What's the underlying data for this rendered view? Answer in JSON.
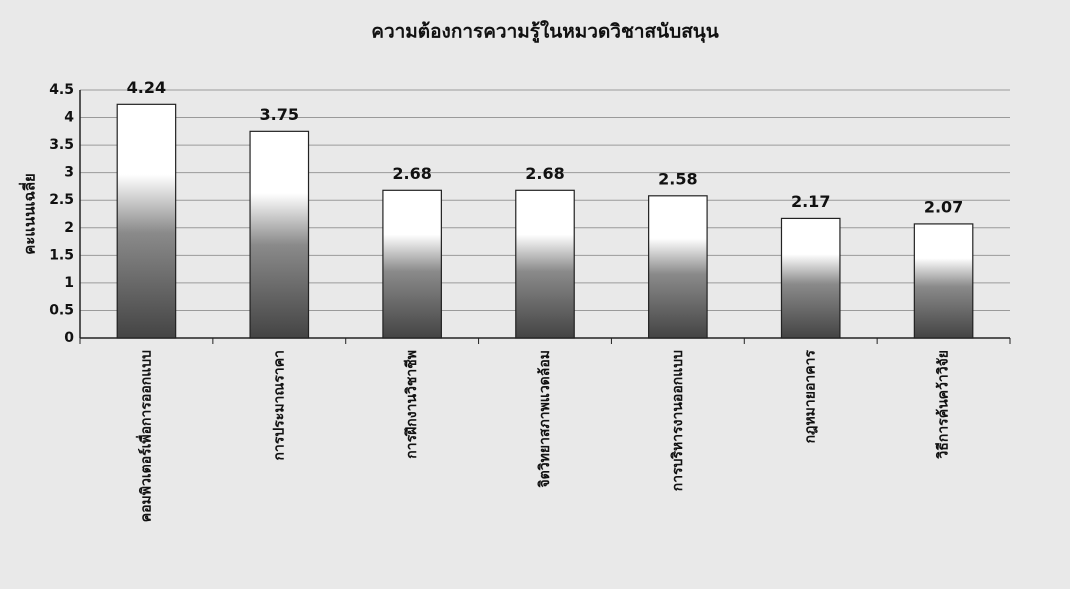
{
  "chart_data": {
    "type": "bar",
    "title": "ความต้องการความรู้ในหมวดวิชาสนับสนุน",
    "y_label": "คะแนนเฉลี่ย",
    "categories": [
      "คอมพิวเตอร์เพื่อการออกแบบ",
      "การประมาณราคา",
      "การฝึกงานวิชาชีพ",
      "จิตวิทยาสภาพแวดล้อม",
      "การบริหารงานออกแบบ",
      "กฎหมายอาคาร",
      "วิธีการค้นคว้าวิจัย"
    ],
    "values": [
      4.24,
      3.75,
      2.68,
      2.68,
      2.58,
      2.17,
      2.07
    ],
    "color": "#555555",
    "ylim": [
      0,
      4.5
    ],
    "yticks": [
      0,
      0.5,
      1,
      1.5,
      2,
      2.5,
      3,
      3.5,
      4,
      4.5
    ],
    "grid": true
  }
}
